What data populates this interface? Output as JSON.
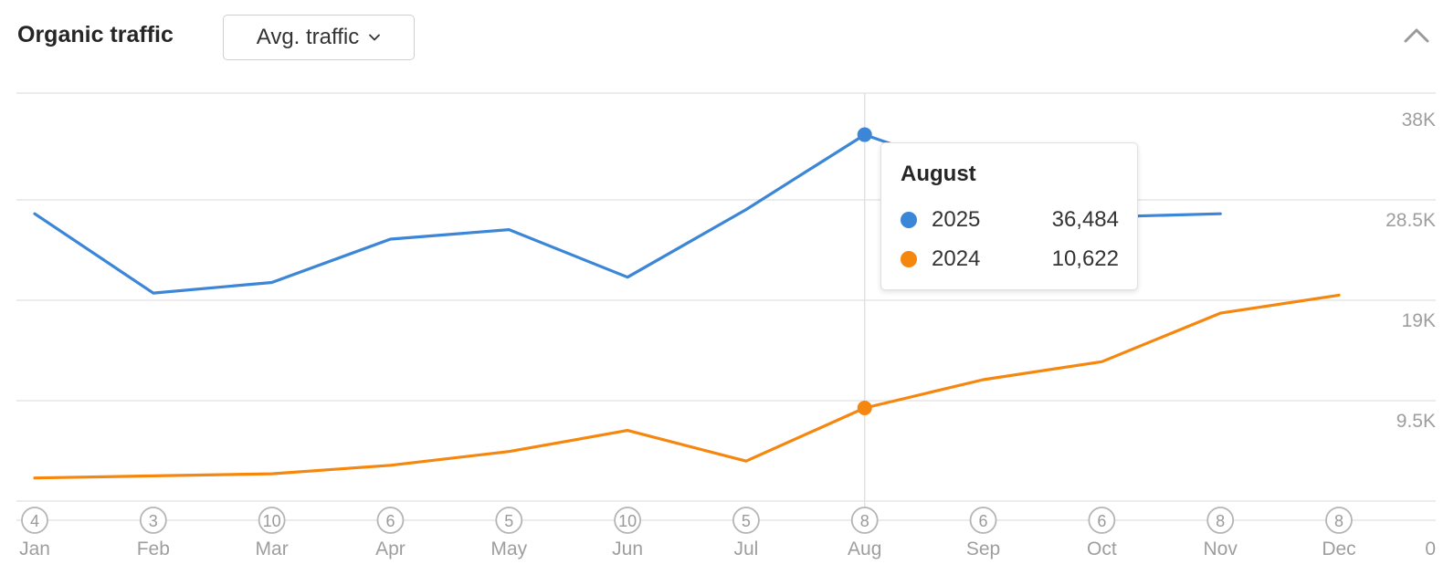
{
  "header": {
    "title": "Organic traffic",
    "dropdown_label": "Avg. traffic"
  },
  "colors": {
    "series_2025": "#3b86d6",
    "series_2024": "#f5870f",
    "grid": "#e5e5e5",
    "axis_text": "#9e9e9e",
    "badge": "#b5b5b5"
  },
  "tooltip": {
    "title": "August",
    "rows": [
      {
        "name": "2025",
        "value": "36,484"
      },
      {
        "name": "2024",
        "value": "10,622"
      }
    ]
  },
  "chart_data": {
    "type": "line",
    "categories": [
      "Jan",
      "Feb",
      "Mar",
      "Apr",
      "May",
      "Jun",
      "Jul",
      "Aug",
      "Sep",
      "Oct",
      "Nov",
      "Dec"
    ],
    "badges": [
      "4",
      "3",
      "10",
      "6",
      "5",
      "10",
      "5",
      "8",
      "6",
      "6",
      "8",
      "8"
    ],
    "series": [
      {
        "name": "2025",
        "values": [
          29000,
          21500,
          22500,
          26600,
          27500,
          23000,
          29400,
          36484,
          32600,
          28700,
          29000,
          null
        ]
      },
      {
        "name": "2024",
        "values": [
          4000,
          4200,
          4400,
          5200,
          6500,
          8500,
          5600,
          10622,
          13300,
          15000,
          19600,
          21300
        ]
      }
    ],
    "ylim": [
      0,
      40000
    ],
    "y_ticks": [
      0,
      9500,
      19000,
      28500,
      38000
    ],
    "y_tick_labels": [
      "0",
      "9.5K",
      "19K",
      "28.5K",
      "38K"
    ],
    "highlight_category": "Aug",
    "grid": true,
    "y_axis_position": "right"
  }
}
